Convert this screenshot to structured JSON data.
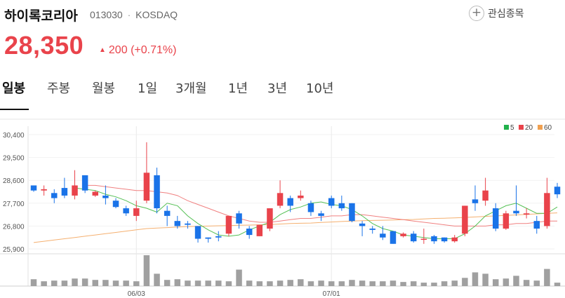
{
  "stock": {
    "name": "하이록코리아",
    "code": "013030",
    "separator": "·",
    "market": "KOSDAQ",
    "price": "28,350",
    "change": "200",
    "change_pct": "(+0.71%)",
    "up_color": "#e9434b",
    "down_color": "#1a73e8"
  },
  "watch": {
    "icon": "plus-icon",
    "label": "관심종목"
  },
  "tabs": [
    {
      "label": "일봉",
      "active": true
    },
    {
      "label": "주봉"
    },
    {
      "label": "월봉"
    },
    {
      "label": "1일"
    },
    {
      "label": "3개월"
    },
    {
      "label": "1년"
    },
    {
      "label": "3년"
    },
    {
      "label": "10년"
    }
  ],
  "chart_data": {
    "type": "candlestick",
    "ylim": [
      25900,
      30400
    ],
    "y_ticks": [
      "30,400",
      "29,500",
      "28,600",
      "27,700",
      "26,800",
      "25,900"
    ],
    "x_ticks": [
      {
        "index": 10,
        "label": "06/03"
      },
      {
        "index": 29,
        "label": "07/01"
      }
    ],
    "legend": [
      {
        "label": "5",
        "color": "#22b14c"
      },
      {
        "label": "20",
        "color": "#e9434b"
      },
      {
        "label": "60",
        "color": "#f0a050"
      }
    ],
    "ma_colors": {
      "ma5": "#55c055",
      "ma20": "#f08080",
      "ma60": "#f5b070"
    },
    "candles": [
      [
        28400,
        28400,
        28200,
        28150
      ],
      [
        28200,
        28400,
        28250,
        28000
      ],
      [
        28100,
        28250,
        27900,
        27700
      ],
      [
        28300,
        28700,
        28000,
        27900
      ],
      [
        28000,
        29000,
        28400,
        27850
      ],
      [
        28800,
        28800,
        28200,
        28100
      ],
      [
        28000,
        28200,
        28150,
        27950
      ],
      [
        28000,
        28400,
        27900,
        27650
      ],
      [
        27800,
        27900,
        27550,
        27500
      ],
      [
        27500,
        27600,
        27300,
        27200
      ],
      [
        27200,
        27800,
        27500,
        27000
      ],
      [
        27800,
        30100,
        28900,
        27700
      ],
      [
        28800,
        29100,
        27500,
        27300
      ],
      [
        27400,
        27600,
        27200,
        26800
      ],
      [
        27000,
        27200,
        26800,
        26700
      ],
      [
        26900,
        27000,
        26850,
        26700
      ],
      [
        26800,
        26800,
        26300,
        26150
      ],
      [
        26350,
        26350,
        26300,
        26150
      ],
      [
        26400,
        26600,
        26350,
        26200
      ],
      [
        26500,
        27200,
        27200,
        26400
      ],
      [
        27300,
        27400,
        26900,
        26700
      ],
      [
        26700,
        26800,
        26450,
        26300
      ],
      [
        26400,
        26800,
        26850,
        26400
      ],
      [
        26700,
        27500,
        27500,
        26600
      ],
      [
        27600,
        28600,
        28100,
        27500
      ],
      [
        27900,
        28000,
        27600,
        27350
      ],
      [
        27900,
        28200,
        28000,
        27800
      ],
      [
        27700,
        27800,
        27350,
        27200
      ],
      [
        27300,
        27400,
        27200,
        27000
      ],
      [
        27900,
        28000,
        27600,
        27500
      ],
      [
        27700,
        28000,
        27500,
        27400
      ],
      [
        27700,
        27700,
        27000,
        26950
      ],
      [
        26900,
        27000,
        26800,
        26400
      ],
      [
        26700,
        26800,
        26650,
        26500
      ],
      [
        26500,
        26800,
        26350,
        26250
      ],
      [
        26600,
        26600,
        26100,
        26100
      ],
      [
        26400,
        26550,
        26500,
        26350
      ],
      [
        26500,
        26600,
        26200,
        26150
      ],
      [
        26300,
        26700,
        26300,
        26100
      ],
      [
        26400,
        26450,
        26200,
        26100
      ],
      [
        26350,
        26350,
        26200,
        26150
      ],
      [
        26200,
        26450,
        26350,
        26150
      ],
      [
        26500,
        27600,
        27600,
        26400
      ],
      [
        27850,
        28400,
        27700,
        27400
      ],
      [
        27800,
        28700,
        28200,
        27600
      ],
      [
        27500,
        27700,
        26700,
        26600
      ],
      [
        26700,
        27400,
        27300,
        26650
      ],
      [
        27400,
        28400,
        27300,
        27200
      ],
      [
        27250,
        27500,
        27300,
        27100
      ],
      [
        27000,
        27200,
        26700,
        26500
      ],
      [
        26800,
        28700,
        28100,
        26700
      ],
      [
        28350,
        28500,
        28050,
        27900
      ]
    ],
    "ma5": [
      null,
      null,
      null,
      null,
      28300,
      28250,
      28200,
      28050,
      27950,
      27800,
      27600,
      27500,
      27350,
      27700,
      27600,
      27200,
      26900,
      26650,
      26450,
      26400,
      26450,
      26650,
      26800,
      26950,
      27250,
      27450,
      27550,
      27700,
      27750,
      27650,
      27600,
      27450,
      27200,
      26900,
      26700,
      26600,
      26450,
      26400,
      26350,
      26300,
      26300,
      26300,
      26500,
      26800,
      27200,
      27400,
      27600,
      27700,
      27500,
      27300,
      27300,
      27550
    ],
    "ma20": [
      null,
      null,
      null,
      null,
      null,
      28400,
      28400,
      28350,
      28300,
      28250,
      28200,
      28200,
      28150,
      28100,
      28000,
      27800,
      27650,
      27500,
      27350,
      27200,
      27100,
      27000,
      26950,
      26950,
      27000,
      27050,
      27100,
      27100,
      27150,
      27200,
      27200,
      27250,
      27250,
      27200,
      27150,
      27100,
      27050,
      27000,
      26950,
      26900,
      26850,
      26800,
      26800,
      26800,
      26800,
      26850,
      26850,
      26900,
      26900,
      26950,
      27000,
      27000
    ],
    "ma60": [
      26150,
      26200,
      26250,
      26300,
      26350,
      26400,
      26450,
      26500,
      26550,
      26600,
      26650,
      26700,
      26720,
      26740,
      26760,
      26780,
      26790,
      26800,
      26810,
      26820,
      26830,
      26840,
      26850,
      26860,
      26880,
      26900,
      26910,
      26920,
      26940,
      26960,
      26980,
      27000,
      27010,
      27020,
      27030,
      27040,
      27050,
      27060,
      27080,
      27100,
      27110,
      27120,
      27140,
      27160,
      27180,
      27200,
      27220,
      27240,
      27260,
      27280,
      27300,
      27320
    ],
    "volumes": [
      10,
      7,
      8,
      8,
      11,
      11,
      9,
      9,
      8,
      8,
      7,
      45,
      18,
      9,
      10,
      8,
      8,
      8,
      8,
      7,
      24,
      8,
      7,
      7,
      8,
      9,
      10,
      7,
      8,
      7,
      7,
      9,
      8,
      7,
      7,
      8,
      6,
      7,
      5,
      5,
      7,
      8,
      12,
      20,
      18,
      10,
      11,
      15,
      9,
      8,
      25,
      5
    ]
  }
}
